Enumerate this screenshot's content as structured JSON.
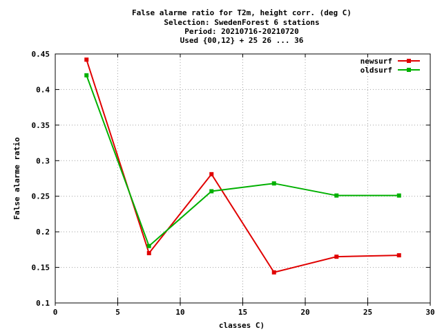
{
  "chart_data": {
    "type": "line",
    "title": [
      "False alarme ratio  for T2m, height corr. (deg C)",
      "Selection: SwedenForest      6 stations",
      "Period: 20210716-20210720",
      "Used {00,12} + 25 26 ... 36"
    ],
    "xlabel": "classes C)",
    "ylabel": "False alarme ratio",
    "xlim": [
      0,
      30
    ],
    "ylim": [
      0.1,
      0.45
    ],
    "xticks": [
      0,
      5,
      10,
      15,
      20,
      25,
      30
    ],
    "yticks": [
      0.1,
      0.15,
      0.2,
      0.25,
      0.3,
      0.35,
      0.4,
      0.45
    ],
    "ytick_labels": [
      "0.1",
      "0.15",
      "0.2",
      "0.25",
      "0.3",
      "0.35",
      "0.4",
      "0.45"
    ],
    "grid": true,
    "legend_position": "top-right",
    "x": [
      2.5,
      7.5,
      12.5,
      17.5,
      22.5,
      27.5
    ],
    "series": [
      {
        "name": "newsurf",
        "color": "#e00000",
        "values": [
          0.442,
          0.17,
          0.281,
          0.143,
          0.165,
          0.167
        ]
      },
      {
        "name": "oldsurf",
        "color": "#00b000",
        "values": [
          0.42,
          0.18,
          0.257,
          0.268,
          0.251,
          0.251
        ]
      }
    ]
  }
}
